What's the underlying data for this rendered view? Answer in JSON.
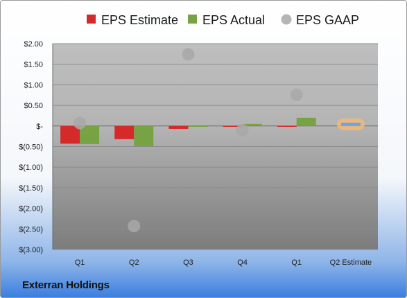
{
  "company": "Exterran Holdings",
  "chart_data": {
    "type": "bar",
    "categories": [
      "Q1",
      "Q2",
      "Q3",
      "Q4",
      "Q1",
      "Q2 Estimate"
    ],
    "series": [
      {
        "name": "EPS Estimate",
        "type": "bar",
        "color": "#d42a2a",
        "values": [
          -0.43,
          -0.32,
          -0.07,
          -0.02,
          -0.02,
          null
        ]
      },
      {
        "name": "EPS Actual",
        "type": "bar",
        "color": "#77a345",
        "values": [
          -0.44,
          -0.49,
          -0.02,
          0.05,
          0.2,
          null
        ]
      },
      {
        "name": "EPS GAAP",
        "type": "scatter",
        "color": "#a8a8a8",
        "values": [
          0.07,
          -2.43,
          1.74,
          -0.1,
          0.76,
          null
        ]
      },
      {
        "name": "",
        "type": "bar",
        "color": "#6aa6e0",
        "highlight": "#f3b777",
        "values": [
          null,
          null,
          null,
          null,
          null,
          0.08
        ]
      }
    ],
    "y_ticks": [
      {
        "value": 2.0,
        "label": "$2.00"
      },
      {
        "value": 1.5,
        "label": "$1.50"
      },
      {
        "value": 1.0,
        "label": "$1.00"
      },
      {
        "value": 0.5,
        "label": "$0.50"
      },
      {
        "value": 0.0,
        "label": "$-"
      },
      {
        "value": -0.5,
        "label": "$(0.50)"
      },
      {
        "value": -1.0,
        "label": "$(1.00)"
      },
      {
        "value": -1.5,
        "label": "$(1.50)"
      },
      {
        "value": -2.0,
        "label": "$(2.00)"
      },
      {
        "value": -2.5,
        "label": "$(2.50)"
      },
      {
        "value": -3.0,
        "label": "$(3.00)"
      }
    ],
    "ylim": [
      -3.0,
      2.0
    ],
    "grid": true,
    "legend": "top"
  }
}
